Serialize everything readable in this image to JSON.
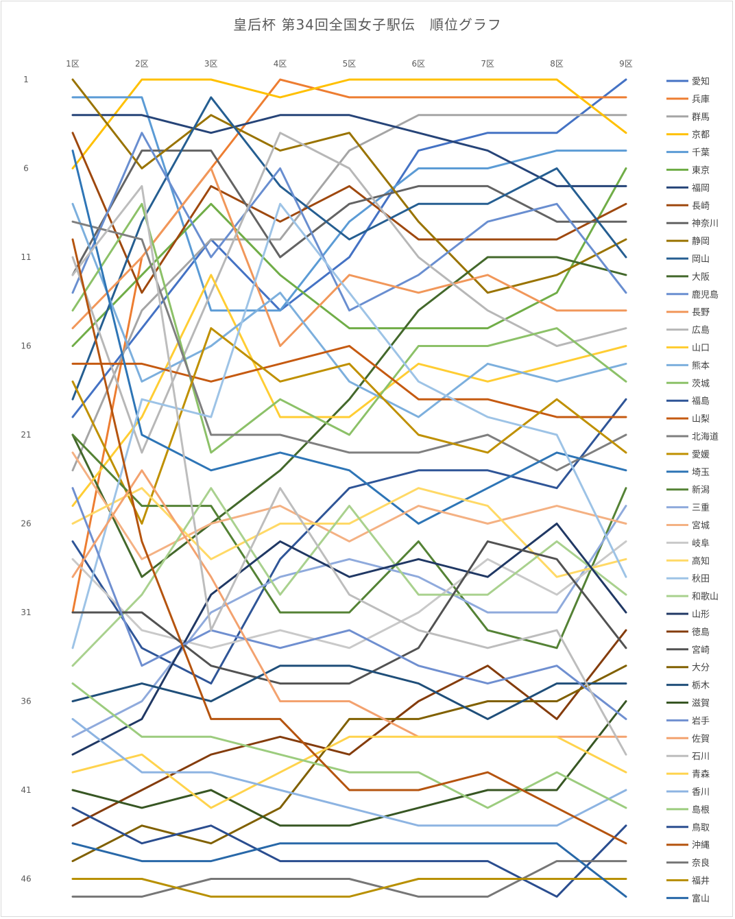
{
  "chart_data": {
    "type": "line",
    "title": "皇后杯 第34回全国女子駅伝　順位グラフ",
    "categories": [
      "1区",
      "2区",
      "3区",
      "4区",
      "5区",
      "6区",
      "7区",
      "8区",
      "9区"
    ],
    "y_reversed": true,
    "ylim": [
      1,
      47
    ],
    "y_ticks": [
      1,
      6,
      11,
      16,
      21,
      26,
      31,
      36,
      41,
      46
    ],
    "grid": false,
    "legend": "right",
    "series": [
      {
        "name": "愛知",
        "color": "#4472c4",
        "values": [
          20,
          15,
          10,
          14,
          11,
          5,
          4,
          4,
          1
        ]
      },
      {
        "name": "兵庫",
        "color": "#ed7d31",
        "values": [
          31,
          11,
          6,
          1,
          2,
          2,
          2,
          2,
          2
        ]
      },
      {
        "name": "群馬",
        "color": "#a5a5a5",
        "values": [
          23,
          14,
          10,
          10,
          5,
          3,
          3,
          3,
          3
        ]
      },
      {
        "name": "京都",
        "color": "#ffc000",
        "values": [
          6,
          1,
          1,
          2,
          1,
          1,
          1,
          1,
          4
        ]
      },
      {
        "name": "千葉",
        "color": "#5b9bd5",
        "values": [
          2,
          2,
          14,
          14,
          9,
          6,
          6,
          5,
          5
        ]
      },
      {
        "name": "東京",
        "color": "#70ad47",
        "values": [
          16,
          12,
          8,
          12,
          15,
          15,
          15,
          13,
          6
        ]
      },
      {
        "name": "福岡",
        "color": "#264478",
        "values": [
          3,
          3,
          4,
          3,
          3,
          4,
          5,
          7,
          7
        ]
      },
      {
        "name": "長崎",
        "color": "#9e480e",
        "values": [
          4,
          13,
          7,
          9,
          7,
          10,
          10,
          10,
          8
        ]
      },
      {
        "name": "神奈川",
        "color": "#636363",
        "values": [
          12,
          5,
          5,
          11,
          8,
          7,
          7,
          9,
          9
        ]
      },
      {
        "name": "静岡",
        "color": "#997300",
        "values": [
          1,
          6,
          3,
          5,
          4,
          9,
          13,
          12,
          10
        ]
      },
      {
        "name": "岡山",
        "color": "#255e91",
        "values": [
          19,
          9,
          2,
          7,
          10,
          8,
          8,
          6,
          11
        ]
      },
      {
        "name": "大阪",
        "color": "#43682b",
        "values": [
          21,
          29,
          26,
          23,
          19,
          14,
          11,
          11,
          12
        ]
      },
      {
        "name": "鹿児島",
        "color": "#698ed0",
        "values": [
          13,
          4,
          11,
          6,
          14,
          12,
          9,
          8,
          13
        ]
      },
      {
        "name": "長野",
        "color": "#f1975a",
        "values": [
          15,
          11,
          6,
          16,
          12,
          13,
          12,
          14,
          14
        ]
      },
      {
        "name": "広島",
        "color": "#b7b7b7",
        "values": [
          11,
          22,
          13,
          4,
          6,
          11,
          14,
          16,
          15
        ]
      },
      {
        "name": "山口",
        "color": "#ffcd33",
        "values": [
          25,
          20,
          12,
          20,
          20,
          17,
          18,
          17,
          16
        ]
      },
      {
        "name": "熊本",
        "color": "#7cafdd",
        "values": [
          8,
          18,
          16,
          13,
          18,
          20,
          17,
          18,
          17
        ]
      },
      {
        "name": "茨城",
        "color": "#8cc168",
        "values": [
          14,
          8,
          22,
          19,
          21,
          16,
          16,
          15,
          18
        ]
      },
      {
        "name": "福島",
        "color": "#2f5597",
        "values": [
          27,
          33,
          35,
          28,
          24,
          23,
          23,
          24,
          19
        ]
      },
      {
        "name": "山梨",
        "color": "#c55a11",
        "values": [
          17,
          17,
          18,
          17,
          16,
          19,
          19,
          20,
          20
        ]
      },
      {
        "name": "北海道",
        "color": "#7f7f7f",
        "values": [
          9,
          10,
          21,
          21,
          22,
          22,
          21,
          23,
          21
        ]
      },
      {
        "name": "愛媛",
        "color": "#bf9000",
        "values": [
          18,
          26,
          15,
          18,
          17,
          21,
          22,
          19,
          22
        ]
      },
      {
        "name": "埼玉",
        "color": "#2e75b6",
        "values": [
          5,
          21,
          23,
          22,
          23,
          26,
          24,
          22,
          23
        ]
      },
      {
        "name": "新潟",
        "color": "#548235",
        "values": [
          21,
          25,
          25,
          31,
          31,
          27,
          32,
          33,
          24
        ]
      },
      {
        "name": "三重",
        "color": "#8faadc",
        "values": [
          38,
          36,
          31,
          29,
          28,
          29,
          31,
          31,
          25
        ]
      },
      {
        "name": "宮城",
        "color": "#f4b183",
        "values": [
          22,
          28,
          26,
          25,
          27,
          25,
          26,
          25,
          26
        ]
      },
      {
        "name": "岐阜",
        "color": "#c9c9c9",
        "values": [
          28,
          32,
          33,
          32,
          33,
          31,
          28,
          30,
          27
        ]
      },
      {
        "name": "高知",
        "color": "#ffd966",
        "values": [
          26,
          24,
          28,
          26,
          26,
          24,
          25,
          29,
          28
        ]
      },
      {
        "name": "秋田",
        "color": "#9dc3e6",
        "values": [
          33,
          19,
          20,
          8,
          13,
          18,
          20,
          21,
          29
        ]
      },
      {
        "name": "和歌山",
        "color": "#a9d18e",
        "values": [
          34,
          30,
          24,
          30,
          25,
          30,
          30,
          27,
          30
        ]
      },
      {
        "name": "山形",
        "color": "#203864",
        "values": [
          39,
          37,
          30,
          27,
          29,
          28,
          29,
          26,
          31
        ]
      },
      {
        "name": "徳島",
        "color": "#843c0c",
        "values": [
          43,
          41,
          39,
          38,
          39,
          36,
          34,
          37,
          32
        ]
      },
      {
        "name": "宮崎",
        "color": "#525252",
        "values": [
          31,
          31,
          34,
          35,
          35,
          33,
          27,
          28,
          33
        ]
      },
      {
        "name": "大分",
        "color": "#806000",
        "values": [
          45,
          43,
          44,
          42,
          37,
          37,
          36,
          36,
          34
        ]
      },
      {
        "name": "栃木",
        "color": "#1f4e79",
        "values": [
          36,
          35,
          36,
          34,
          34,
          35,
          37,
          35,
          35
        ]
      },
      {
        "name": "滋賀",
        "color": "#375623",
        "values": [
          41,
          42,
          41,
          43,
          43,
          42,
          41,
          41,
          36
        ]
      },
      {
        "name": "岩手",
        "color": "#6f8fd0",
        "values": [
          24,
          34,
          32,
          33,
          32,
          34,
          35,
          34,
          37
        ]
      },
      {
        "name": "佐賀",
        "color": "#f3a26f",
        "values": [
          29,
          23,
          29,
          36,
          36,
          38,
          38,
          38,
          38
        ]
      },
      {
        "name": "石川",
        "color": "#bdbdbd",
        "values": [
          12,
          7,
          32,
          24,
          30,
          32,
          33,
          32,
          39
        ]
      },
      {
        "name": "青森",
        "color": "#ffd34d",
        "values": [
          40,
          39,
          42,
          40,
          38,
          38,
          38,
          38,
          40
        ]
      },
      {
        "name": "香川",
        "color": "#8db4e2",
        "values": [
          37,
          40,
          40,
          41,
          42,
          43,
          43,
          43,
          41
        ]
      },
      {
        "name": "島根",
        "color": "#9ccc7e",
        "values": [
          35,
          38,
          38,
          39,
          40,
          40,
          42,
          40,
          42
        ]
      },
      {
        "name": "鳥取",
        "color": "#2a4d8f",
        "values": [
          42,
          44,
          43,
          45,
          45,
          45,
          45,
          47,
          43
        ]
      },
      {
        "name": "沖縄",
        "color": "#b5540f",
        "values": [
          10,
          27,
          37,
          37,
          41,
          41,
          40,
          42,
          44
        ]
      },
      {
        "name": "奈良",
        "color": "#767676",
        "values": [
          47,
          47,
          46,
          46,
          46,
          47,
          47,
          45,
          45
        ]
      },
      {
        "name": "福井",
        "color": "#b89000",
        "values": [
          46,
          46,
          47,
          47,
          47,
          46,
          46,
          46,
          46
        ]
      },
      {
        "name": "富山",
        "color": "#2868a8",
        "values": [
          44,
          45,
          45,
          44,
          44,
          44,
          44,
          44,
          47
        ]
      }
    ]
  }
}
